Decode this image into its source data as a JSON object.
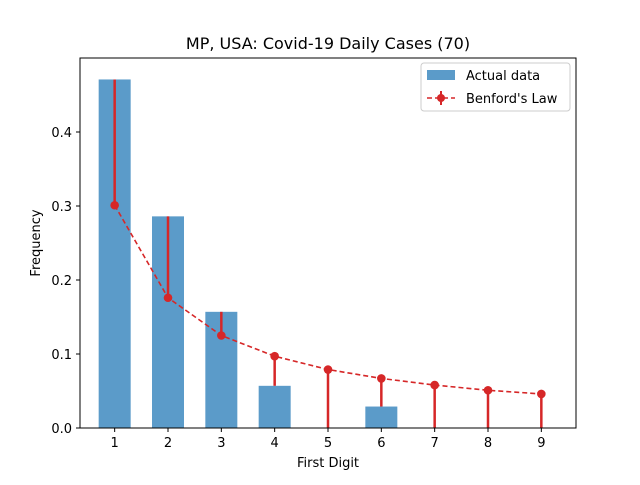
{
  "chart_data": {
    "type": "bar",
    "title": "MP, USA: Covid-19 Daily Cases (70)",
    "xlabel": "First Digit",
    "ylabel": "Frequency",
    "categories": [
      "1",
      "2",
      "3",
      "4",
      "5",
      "6",
      "7",
      "8",
      "9"
    ],
    "x": [
      1,
      2,
      3,
      4,
      5,
      6,
      7,
      8,
      9
    ],
    "xlim": [
      0.35,
      9.65
    ],
    "ylim": [
      0,
      0.5
    ],
    "yticks": [
      "0.0",
      "0.1",
      "0.2",
      "0.3",
      "0.4"
    ],
    "grid": false,
    "legend_position": "top-right",
    "series": [
      {
        "name": "Actual data",
        "kind": "bar",
        "color": "#5b9bc9",
        "values": [
          0.471,
          0.286,
          0.157,
          0.057,
          0.0,
          0.029,
          0.0,
          0.0,
          0.0
        ]
      },
      {
        "name": "Benford's Law",
        "kind": "line-errorbar",
        "color": "#d62728",
        "linestyle": "dashed",
        "values": [
          0.301,
          0.176,
          0.125,
          0.097,
          0.079,
          0.067,
          0.058,
          0.051,
          0.046
        ],
        "error_to": [
          0.471,
          0.286,
          0.157,
          0.057,
          0.0,
          0.029,
          0.0,
          0.0,
          0.0
        ]
      }
    ]
  }
}
